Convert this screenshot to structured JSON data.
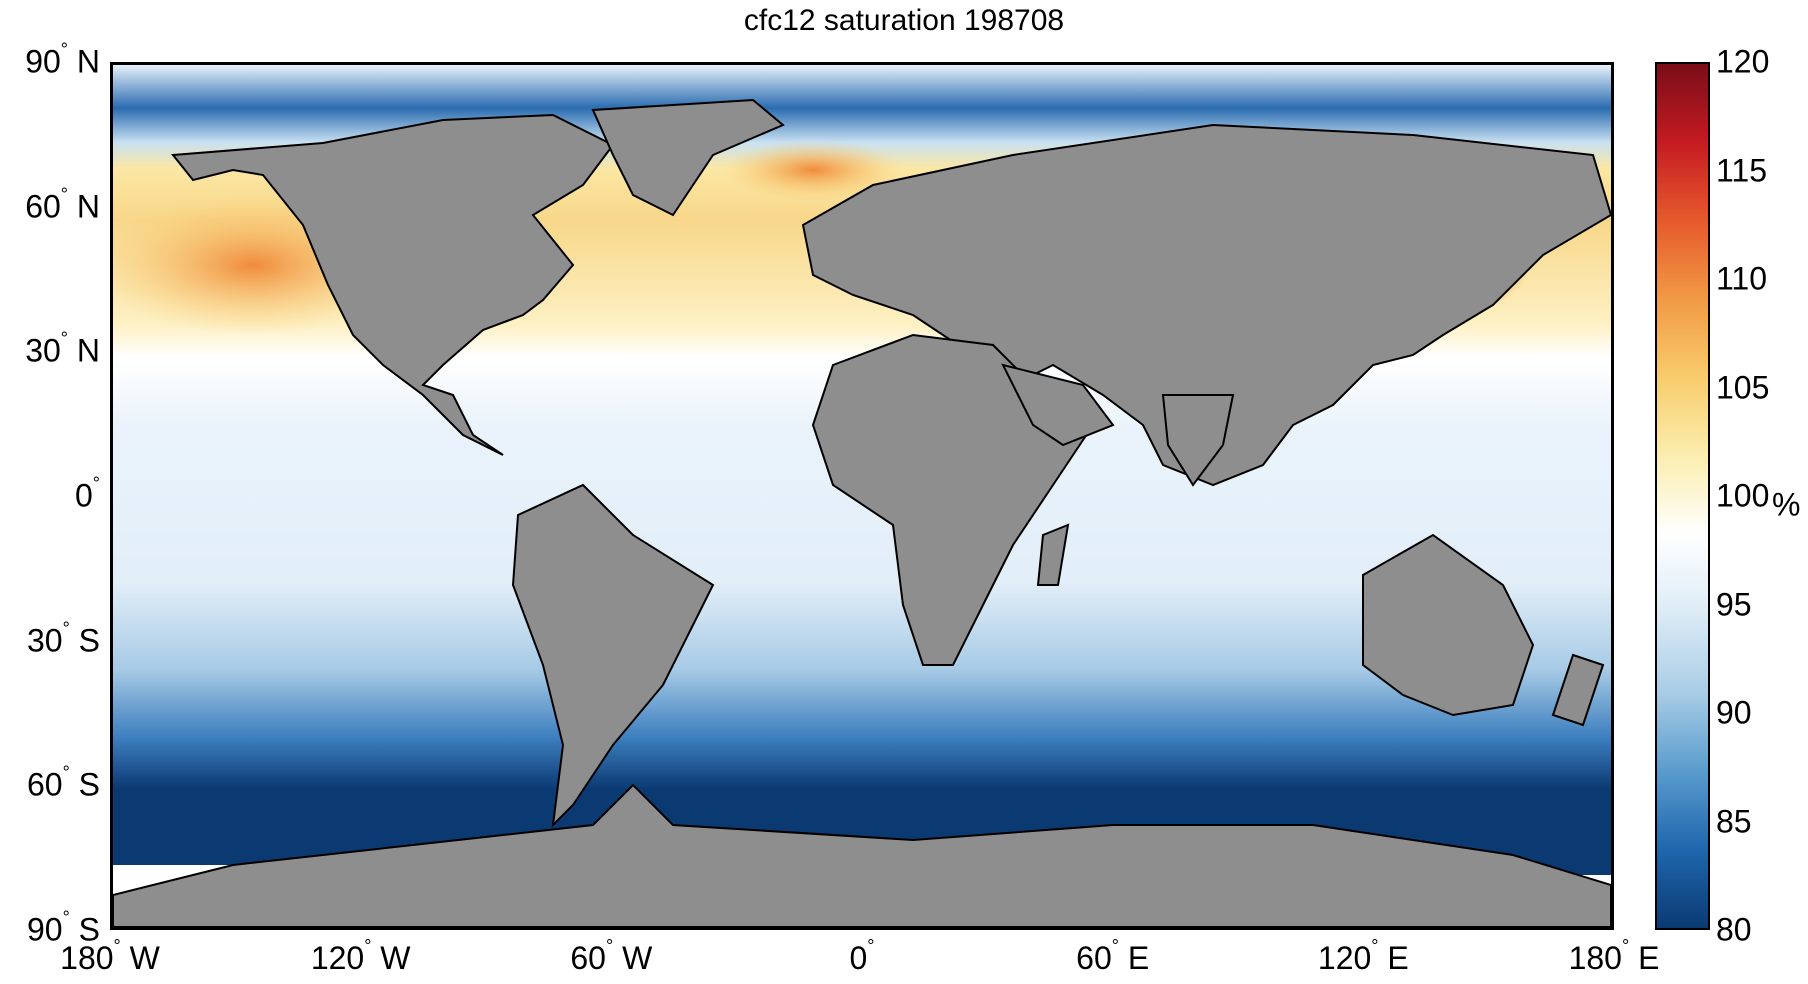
{
  "title": "cfc12 saturation 198708",
  "latitude_labels": [
    {
      "value": "90",
      "hemi": "N",
      "lat": 90
    },
    {
      "value": "60",
      "hemi": "N",
      "lat": 60
    },
    {
      "value": "30",
      "hemi": "N",
      "lat": 30
    },
    {
      "value": "0",
      "hemi": "",
      "lat": 0
    },
    {
      "value": "30",
      "hemi": "S",
      "lat": -30
    },
    {
      "value": "60",
      "hemi": "S",
      "lat": -60
    },
    {
      "value": "90",
      "hemi": "S",
      "lat": -90
    }
  ],
  "longitude_labels": [
    {
      "value": "180",
      "hemi": "W",
      "lon": -180
    },
    {
      "value": "120",
      "hemi": "W",
      "lon": -120
    },
    {
      "value": "60",
      "hemi": "W",
      "lon": -60
    },
    {
      "value": "0",
      "hemi": "",
      "lon": 0
    },
    {
      "value": "60",
      "hemi": "E",
      "lon": 60
    },
    {
      "value": "120",
      "hemi": "E",
      "lon": 120
    },
    {
      "value": "180",
      "hemi": "E",
      "lon": 180
    }
  ],
  "colorbar": {
    "unit": "%",
    "min": 80,
    "max": 120,
    "ticks": [
      "120",
      "115",
      "110",
      "105",
      "100",
      "95",
      "90",
      "85",
      "80"
    ],
    "colors": [
      "#0b3a73",
      "#1f67ad",
      "#5a9ccd",
      "#a9cde6",
      "#dcebf6",
      "#ffffff",
      "#fbeeb0",
      "#f8cc6c",
      "#f29a45",
      "#e65a2c",
      "#c51b22",
      "#7a0d18"
    ]
  },
  "land_color": "#8e8e8e"
}
